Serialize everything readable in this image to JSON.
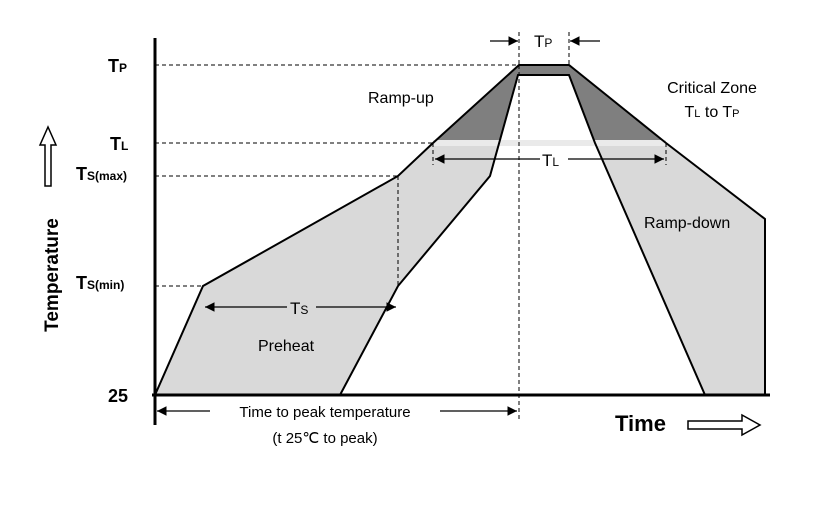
{
  "y_labels": {
    "tp": "T",
    "tp_sub": "P",
    "tl": "T",
    "tl_sub": "L",
    "tsmax": "T",
    "tsmax_sub": "S(max)",
    "tsmin": "T",
    "tsmin_sub": "S(min)",
    "t25": "25"
  },
  "axis": {
    "ylabel": "Temperature",
    "xlabel": "Time"
  },
  "annotations": {
    "ramp_up": "Ramp-up",
    "ramp_down": "Ramp-down",
    "preheat": "Preheat",
    "critical_zone": "Critical Zone",
    "critical_range_a": "T",
    "critical_range_a_sub": "L",
    "critical_range_mid": " to T",
    "critical_range_b_sub": "P",
    "tp_interval": "T",
    "tp_interval_sub": "P",
    "tl_interval": "T",
    "tl_interval_sub": "L",
    "ts_interval": "T",
    "ts_interval_sub": "S",
    "time_to_peak": "Time to peak temperature",
    "time_to_peak_sub": "(t 25℃ to peak)"
  },
  "colors": {
    "light_fill": "#d9d9d9",
    "dark_fill": "#7f7f7f",
    "stroke": "#000000"
  }
}
